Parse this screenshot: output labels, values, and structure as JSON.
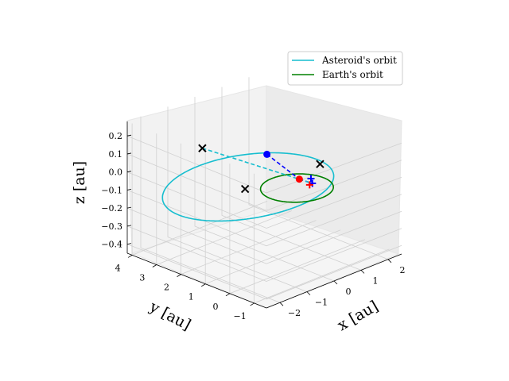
{
  "chart_data": {
    "type": "line",
    "projection": "3d",
    "xlabel": "x [au]",
    "ylabel": "y [au]",
    "zlabel": "z [au]",
    "xlim": [
      -2.5,
      2.5
    ],
    "ylim": [
      -1.5,
      4.2
    ],
    "zlim": [
      -0.45,
      0.28
    ],
    "x_ticks": [
      "-2",
      "-1",
      "0",
      "1",
      "2"
    ],
    "y_ticks": [
      "-1",
      "0",
      "1",
      "2",
      "3",
      "4"
    ],
    "z_ticks": [
      "0.2",
      "0.1",
      "0.0",
      "-0.1",
      "-0.2",
      "-0.3",
      "-0.4"
    ],
    "grid": true,
    "legend_position": "upper right",
    "series": [
      {
        "name": "Asteroid's orbit",
        "color": "#17becf",
        "style": "solid",
        "orbit": {
          "a": 2.45,
          "e": 0.62,
          "inclination_deg": 10,
          "node_deg": 150,
          "perihelion_deg": 195
        }
      },
      {
        "name": "Earth's orbit",
        "color": "#008000",
        "style": "solid",
        "orbit": {
          "a": 1.0,
          "e": 0.017,
          "inclination_deg": 0,
          "node_deg": 0,
          "perihelion_deg": 0
        }
      }
    ],
    "markers": [
      {
        "role": "node",
        "color": "#000000",
        "shape": "x",
        "x": 0.06,
        "y": 3.96,
        "z": 0.0
      },
      {
        "role": "node",
        "color": "#000000",
        "shape": "x",
        "x": -1.05,
        "y": 0.98,
        "z": 0.0
      },
      {
        "role": "node",
        "color": "#000000",
        "shape": "x",
        "x": 1.56,
        "y": 0.8,
        "z": 0.0
      },
      {
        "role": "point",
        "color": "#0000ff",
        "shape": "circle",
        "x": -0.91,
        "y": 0.24,
        "z": 0.23
      },
      {
        "role": "point",
        "color": "#ff0000",
        "shape": "circle",
        "x": 0.45,
        "y": 0.42,
        "z": 0.0
      },
      {
        "role": "projection",
        "color": "#0000ff",
        "shape": "plus",
        "x": 0.5,
        "y": -0.06,
        "z": 0.0
      },
      {
        "role": "projection",
        "color": "#ff0000",
        "shape": "plus",
        "x": 0.38,
        "y": -0.08,
        "z": 0.0
      },
      {
        "role": "projection",
        "color": "#0000ff",
        "shape": "plus",
        "x": 0.7,
        "y": 0.22,
        "z": 0.0
      }
    ],
    "connectors": [
      {
        "color": "#0000ff",
        "style": "dashed",
        "from": [
          -0.91,
          0.24,
          0.23
        ],
        "to": [
          0.45,
          0.42,
          0.0
        ]
      },
      {
        "color": "#0000ff",
        "style": "dashed",
        "from": [
          0.45,
          0.42,
          0.0
        ],
        "to": [
          0.5,
          -0.06,
          0.0
        ]
      },
      {
        "color": "#17becf",
        "style": "dashed",
        "from": [
          0.06,
          3.96,
          0.0
        ],
        "to": [
          0.5,
          -0.06,
          0.0
        ]
      }
    ]
  }
}
